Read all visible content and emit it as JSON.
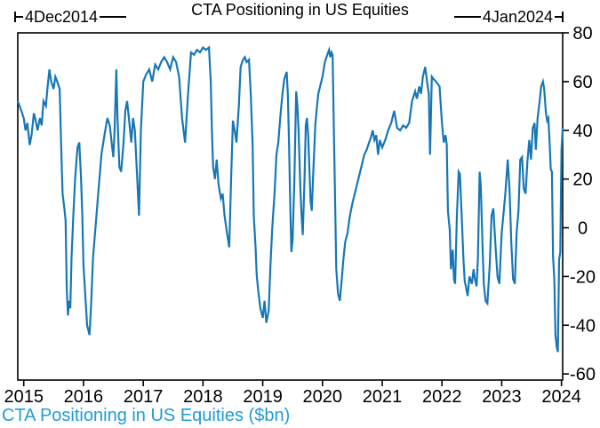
{
  "figure": {
    "title": "CTA Positioning in US Equities",
    "caption": "CTA Positioning in US Equities ($bn)",
    "range_start_label": "4Dec2014",
    "range_end_label": "4Jan2024"
  },
  "colors": {
    "line": "#1777b6",
    "caption": "#1f9bd8",
    "axis": "#000000"
  },
  "chart_data": {
    "type": "line",
    "title": "CTA Positioning in US Equities",
    "caption": "CTA Positioning in US Equities ($bn)",
    "annotations": [
      "4Dec2014",
      "4Jan2024"
    ],
    "xlabel": "",
    "ylabel": "",
    "unit": "$bn",
    "grid": false,
    "legend": false,
    "y_axis_side": "right",
    "x_ticks": [
      2015,
      2016,
      2017,
      2018,
      2019,
      2020,
      2021,
      2022,
      2023,
      2024
    ],
    "y_ticks": [
      80,
      60,
      40,
      20,
      0,
      -20,
      -40,
      -60
    ],
    "xlim": [
      2014.9,
      2024.02
    ],
    "ylim": [
      -62.5,
      80
    ],
    "series": [
      {
        "name": "CTA Positioning in US Equities ($bn)",
        "color": "#1777b6",
        "x": [
          2014.9,
          2014.96,
          2015.0,
          2015.03,
          2015.06,
          2015.1,
          2015.13,
          2015.17,
          2015.2,
          2015.23,
          2015.27,
          2015.3,
          2015.33,
          2015.37,
          2015.4,
          2015.43,
          2015.46,
          2015.5,
          2015.53,
          2015.56,
          2015.6,
          2015.63,
          2015.65,
          2015.68,
          2015.7,
          2015.72,
          2015.74,
          2015.76,
          2015.78,
          2015.8,
          2015.83,
          2015.86,
          2015.9,
          2015.93,
          2015.96,
          2015.98,
          2016.0,
          2016.03,
          2016.06,
          2016.1,
          2016.13,
          2016.16,
          2016.2,
          2016.25,
          2016.3,
          2016.35,
          2016.4,
          2016.44,
          2016.48,
          2016.5,
          2016.52,
          2016.55,
          2016.57,
          2016.6,
          2016.63,
          2016.67,
          2016.7,
          2016.73,
          2016.76,
          2016.8,
          2016.83,
          2016.86,
          2016.9,
          2016.93,
          2016.96,
          2017.0,
          2017.05,
          2017.1,
          2017.15,
          2017.2,
          2017.25,
          2017.3,
          2017.35,
          2017.4,
          2017.45,
          2017.5,
          2017.55,
          2017.6,
          2017.65,
          2017.7,
          2017.75,
          2017.8,
          2017.85,
          2017.9,
          2017.95,
          2018.0,
          2018.05,
          2018.1,
          2018.13,
          2018.15,
          2018.17,
          2018.2,
          2018.23,
          2018.26,
          2018.3,
          2018.33,
          2018.36,
          2018.4,
          2018.44,
          2018.47,
          2018.5,
          2018.53,
          2018.56,
          2018.6,
          2018.63,
          2018.67,
          2018.7,
          2018.73,
          2018.77,
          2018.8,
          2018.83,
          2018.85,
          2018.88,
          2018.9,
          2018.93,
          2018.96,
          2019.0,
          2019.03,
          2019.06,
          2019.1,
          2019.13,
          2019.16,
          2019.2,
          2019.23,
          2019.26,
          2019.3,
          2019.33,
          2019.36,
          2019.4,
          2019.42,
          2019.44,
          2019.46,
          2019.48,
          2019.5,
          2019.53,
          2019.56,
          2019.58,
          2019.6,
          2019.63,
          2019.65,
          2019.67,
          2019.7,
          2019.72,
          2019.74,
          2019.76,
          2019.78,
          2019.8,
          2019.82,
          2019.85,
          2019.88,
          2019.9,
          2019.93,
          2019.96,
          2020.0,
          2020.04,
          2020.08,
          2020.11,
          2020.13,
          2020.15,
          2020.17,
          2020.19,
          2020.21,
          2020.23,
          2020.26,
          2020.29,
          2020.32,
          2020.35,
          2020.38,
          2020.42,
          2020.46,
          2020.5,
          2020.54,
          2020.58,
          2020.62,
          2020.66,
          2020.7,
          2020.74,
          2020.78,
          2020.81,
          2020.84,
          2020.87,
          2020.9,
          2020.93,
          2020.96,
          2021.0,
          2021.05,
          2021.1,
          2021.15,
          2021.2,
          2021.25,
          2021.3,
          2021.35,
          2021.4,
          2021.45,
          2021.5,
          2021.55,
          2021.58,
          2021.62,
          2021.65,
          2021.68,
          2021.72,
          2021.75,
          2021.78,
          2021.8,
          2021.83,
          2021.86,
          2021.9,
          2021.93,
          2021.96,
          2022.0,
          2022.03,
          2022.06,
          2022.08,
          2022.1,
          2022.13,
          2022.15,
          2022.18,
          2022.2,
          2022.22,
          2022.25,
          2022.28,
          2022.3,
          2022.33,
          2022.36,
          2022.38,
          2022.4,
          2022.43,
          2022.46,
          2022.5,
          2022.53,
          2022.55,
          2022.58,
          2022.6,
          2022.63,
          2022.65,
          2022.68,
          2022.7,
          2022.73,
          2022.76,
          2022.8,
          2022.83,
          2022.86,
          2022.9,
          2022.93,
          2022.96,
          2023.0,
          2023.03,
          2023.06,
          2023.1,
          2023.13,
          2023.16,
          2023.19,
          2023.22,
          2023.25,
          2023.28,
          2023.31,
          2023.34,
          2023.37,
          2023.4,
          2023.43,
          2023.46,
          2023.49,
          2023.52,
          2023.55,
          2023.57,
          2023.6,
          2023.63,
          2023.66,
          2023.69,
          2023.71,
          2023.74,
          2023.76,
          2023.78,
          2023.8,
          2023.82,
          2023.84,
          2023.86,
          2023.88,
          2023.9,
          2023.92,
          2023.94,
          2023.96,
          2023.98,
          2024.0,
          2024.02
        ],
        "values": [
          52,
          48,
          45,
          40,
          43,
          34,
          38,
          47,
          44,
          40,
          45,
          42,
          52,
          50,
          58,
          65,
          60,
          57,
          62,
          60,
          57,
          30,
          14,
          8,
          3,
          -25,
          -36,
          -30,
          -33,
          -12,
          5,
          20,
          33,
          35,
          20,
          5,
          -15,
          -28,
          -40,
          -44,
          -30,
          -12,
          0,
          15,
          30,
          38,
          45,
          42,
          33,
          29,
          40,
          65,
          45,
          25,
          23,
          35,
          48,
          52,
          45,
          35,
          45,
          40,
          20,
          5,
          40,
          60,
          63,
          65,
          60,
          67,
          65,
          68,
          70,
          68,
          65,
          70,
          68,
          62,
          45,
          35,
          55,
          72,
          71,
          73,
          72,
          74,
          73,
          74,
          60,
          40,
          25,
          20,
          28,
          18,
          12,
          14,
          5,
          -2,
          -8,
          20,
          44,
          40,
          35,
          50,
          66,
          69,
          70,
          68,
          69,
          55,
          34,
          5,
          -8,
          -20,
          -27,
          -33,
          -37,
          -30,
          -39,
          -34,
          -15,
          0,
          15,
          30,
          35,
          47,
          55,
          61,
          64,
          55,
          34,
          10,
          -10,
          -5,
          20,
          56,
          50,
          40,
          16,
          5,
          -3,
          20,
          42,
          45,
          38,
          25,
          11,
          7,
          25,
          42,
          48,
          55,
          58,
          62,
          68,
          71,
          73,
          70,
          72,
          71,
          40,
          13,
          -17,
          -27,
          -30,
          -22,
          -13,
          -6,
          -2,
          5,
          10,
          14,
          18,
          22,
          26,
          30,
          32,
          35,
          37,
          40,
          36,
          38,
          30,
          36,
          33,
          36,
          40,
          43,
          48,
          41,
          40,
          42,
          41,
          43,
          52,
          56,
          53,
          58,
          55,
          62,
          66,
          60,
          55,
          30,
          62,
          61,
          60,
          59,
          58,
          43,
          35,
          38,
          34,
          7,
          -1,
          -17,
          -9,
          -21,
          -23,
          5,
          23,
          22,
          5,
          -13,
          -22,
          -24,
          -28,
          -20,
          -23,
          -17,
          -21,
          -24,
          -13,
          23,
          17,
          -8,
          -23,
          -30,
          -31,
          -15,
          5,
          8,
          -9,
          -20,
          -23,
          -2,
          6,
          14,
          28,
          16,
          -6,
          -21,
          -23,
          -2,
          7,
          28,
          29,
          16,
          14,
          27,
          36,
          28,
          41,
          43,
          32,
          45,
          51,
          58,
          60,
          57,
          47,
          44,
          45,
          36,
          24,
          23,
          -12,
          -21,
          -44,
          -49,
          -51,
          -13,
          -10,
          32,
          41
        ]
      }
    ]
  }
}
